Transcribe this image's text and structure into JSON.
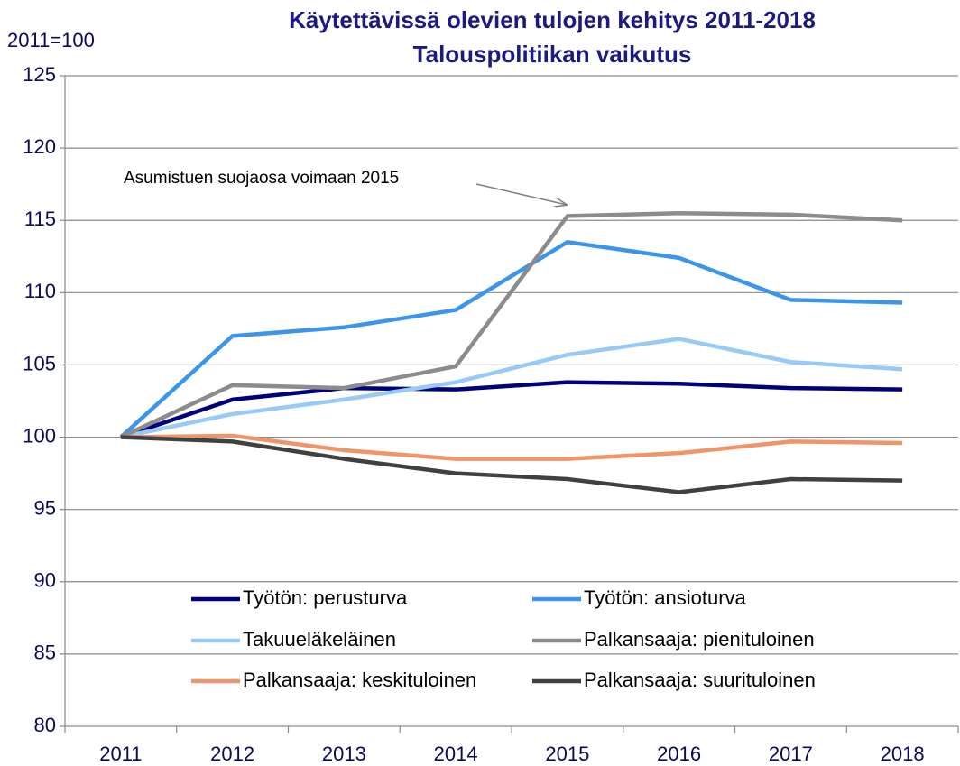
{
  "chart_data": {
    "type": "line",
    "title": "Käytettävissä olevien tulojen kehitys 2011-2018",
    "subtitle": "Talouspolitiikan vaikutus",
    "y_label": "2011=100",
    "annotation": "Asumistuen suojaosa voimaan 2015",
    "categories": [
      "2011",
      "2012",
      "2013",
      "2014",
      "2015",
      "2016",
      "2017",
      "2018"
    ],
    "series": [
      {
        "name": "Työtön: perusturva",
        "color": "#00007f",
        "values": [
          100,
          102.6,
          103.4,
          103.3,
          103.8,
          103.7,
          103.4,
          103.3
        ]
      },
      {
        "name": "Työtön: ansioturva",
        "color": "#3b95ea",
        "values": [
          100,
          107.0,
          107.6,
          108.8,
          113.5,
          112.4,
          109.5,
          109.3
        ]
      },
      {
        "name": "Takuueläkeläinen",
        "color": "#99c9f5",
        "values": [
          100,
          101.6,
          102.6,
          103.8,
          105.7,
          106.8,
          105.2,
          104.7
        ]
      },
      {
        "name": "Palkansaaja: pienituloinen",
        "color": "#8c8c8c",
        "values": [
          100,
          103.6,
          103.4,
          104.9,
          115.3,
          115.5,
          115.4,
          115.0
        ]
      },
      {
        "name": "Palkansaaja: keskituloinen",
        "color": "#f0956a",
        "values": [
          100,
          100.1,
          99.1,
          98.5,
          98.5,
          98.9,
          99.7,
          99.6
        ]
      },
      {
        "name": "Palkansaaja: suurituloinen",
        "color": "#404040",
        "values": [
          100,
          99.7,
          98.5,
          97.5,
          97.1,
          96.2,
          97.1,
          97.0
        ]
      }
    ],
    "ylim": [
      80,
      125
    ],
    "yticks": [
      80,
      85,
      90,
      95,
      100,
      105,
      110,
      115,
      120,
      125
    ],
    "grid": true,
    "legend": "lower center"
  }
}
